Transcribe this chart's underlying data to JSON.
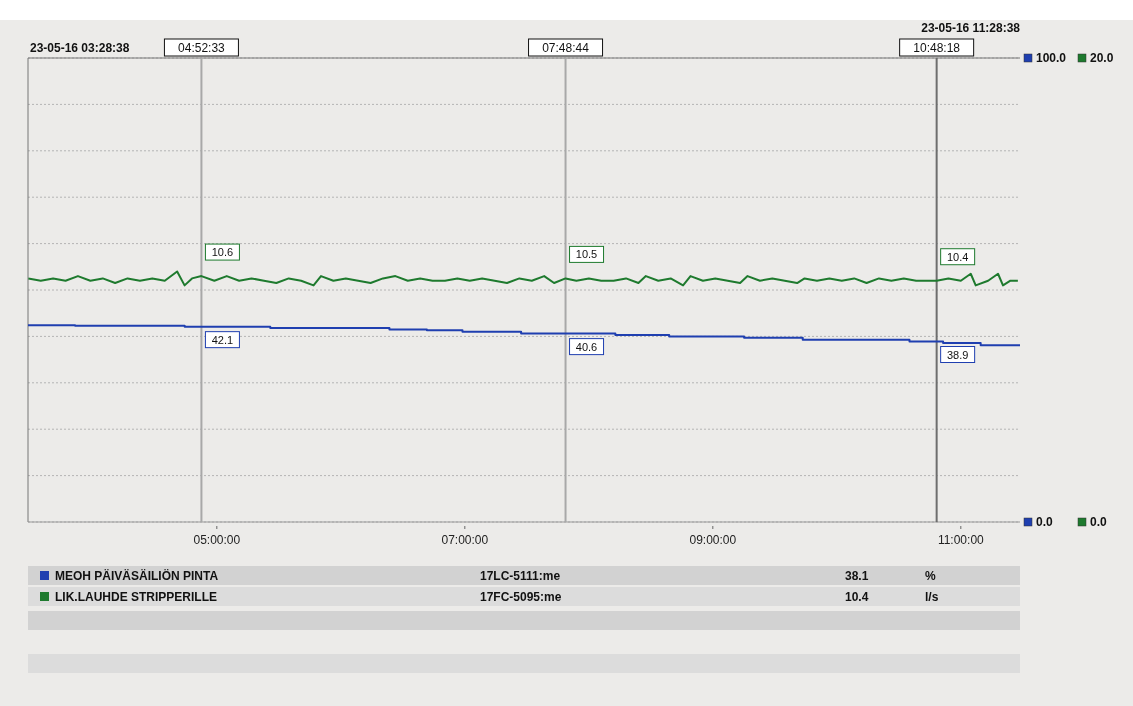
{
  "chart_data": {
    "type": "line",
    "xlim": [
      3.47722,
      11.47722
    ],
    "xticks": [
      {
        "value": 5,
        "label": "05:00:00"
      },
      {
        "value": 7,
        "label": "07:00:00"
      },
      {
        "value": 9,
        "label": "09:00:00"
      },
      {
        "value": 11,
        "label": "11:00:00"
      }
    ],
    "ylim": [
      0,
      100
    ],
    "yticks": [
      {
        "value": 0,
        "label": "0.0"
      },
      {
        "value": 10,
        "label": null
      },
      {
        "value": 20,
        "label": null
      },
      {
        "value": 30,
        "label": null
      },
      {
        "value": 40,
        "label": null
      },
      {
        "value": 50,
        "label": null
      },
      {
        "value": 60,
        "label": null
      },
      {
        "value": 70,
        "label": null
      },
      {
        "value": 80,
        "label": null
      },
      {
        "value": 90,
        "label": null
      },
      {
        "value": 100,
        "label": "100.0"
      }
    ],
    "y2lim": [
      0,
      20
    ],
    "y2ticks": [
      {
        "value": 0,
        "label": "0.0"
      },
      {
        "value": 20,
        "label": "20.0"
      }
    ],
    "grid": "y",
    "legend": "bottom",
    "series": [
      {
        "name": "MEOH PÄIVÄSÄILIÖN PINTA",
        "type": "step",
        "color": "#1f3fb0",
        "x": [
          3.47722,
          3.857,
          4.741,
          4.87583,
          5.431,
          6.392,
          6.694,
          6.981,
          7.454,
          7.81222,
          8.214,
          8.648,
          9.252,
          9.725,
          10.586,
          10.805,
          10.857,
          11.16,
          11.47722
        ],
        "values": [
          42.4,
          42.3,
          42.1,
          42.1,
          41.8,
          41.5,
          41.3,
          41.0,
          40.6,
          40.6,
          40.3,
          40.0,
          39.7,
          39.3,
          38.9,
          38.9,
          38.6,
          38.1,
          38.1
        ],
        "value_labels": [
          null,
          null,
          null,
          "42.1",
          null,
          null,
          null,
          null,
          null,
          "40.6",
          null,
          null,
          null,
          null,
          null,
          "38.9",
          null,
          null,
          null
        ]
      },
      {
        "name": "LIK.LAUHDE STRIPPERILLE",
        "type": "line",
        "axis": "y2",
        "color": "#1e7a2e",
        "x": [
          3.48,
          3.58,
          3.68,
          3.78,
          3.88,
          3.98,
          4.08,
          4.18,
          4.28,
          4.38,
          4.48,
          4.58,
          4.68,
          4.74,
          4.8,
          4.87583,
          4.98,
          5.08,
          5.18,
          5.28,
          5.38,
          5.48,
          5.58,
          5.68,
          5.78,
          5.84,
          5.94,
          6.04,
          6.14,
          6.24,
          6.34,
          6.44,
          6.54,
          6.64,
          6.74,
          6.84,
          6.94,
          7.04,
          7.14,
          7.24,
          7.34,
          7.44,
          7.54,
          7.64,
          7.72,
          7.81222,
          7.9,
          8.0,
          8.1,
          8.2,
          8.3,
          8.4,
          8.46,
          8.56,
          8.66,
          8.76,
          8.82,
          8.92,
          9.02,
          9.12,
          9.22,
          9.28,
          9.38,
          9.48,
          9.58,
          9.68,
          9.74,
          9.84,
          9.94,
          10.04,
          10.14,
          10.24,
          10.34,
          10.44,
          10.54,
          10.64,
          10.74,
          10.805,
          10.9,
          11.0,
          11.08,
          11.12,
          11.22,
          11.3,
          11.34,
          11.4,
          11.46
        ],
        "values": [
          10.5,
          10.4,
          10.5,
          10.4,
          10.6,
          10.4,
          10.5,
          10.3,
          10.5,
          10.4,
          10.5,
          10.4,
          10.8,
          10.2,
          10.5,
          10.6,
          10.4,
          10.6,
          10.4,
          10.5,
          10.4,
          10.3,
          10.5,
          10.4,
          10.2,
          10.6,
          10.4,
          10.5,
          10.4,
          10.3,
          10.5,
          10.6,
          10.4,
          10.5,
          10.4,
          10.4,
          10.5,
          10.4,
          10.5,
          10.4,
          10.3,
          10.5,
          10.4,
          10.6,
          10.3,
          10.5,
          10.4,
          10.5,
          10.4,
          10.4,
          10.5,
          10.3,
          10.6,
          10.4,
          10.5,
          10.2,
          10.6,
          10.4,
          10.5,
          10.4,
          10.3,
          10.6,
          10.4,
          10.5,
          10.4,
          10.3,
          10.5,
          10.4,
          10.5,
          10.4,
          10.5,
          10.3,
          10.5,
          10.4,
          10.5,
          10.4,
          10.4,
          10.4,
          10.5,
          10.4,
          10.7,
          10.2,
          10.4,
          10.7,
          10.2,
          10.4,
          10.4
        ],
        "value_labels": [
          null,
          null,
          null,
          null,
          null,
          null,
          null,
          null,
          null,
          null,
          null,
          null,
          null,
          null,
          null,
          "10.6",
          null,
          null,
          null,
          null,
          null,
          null,
          null,
          null,
          null,
          null,
          null,
          null,
          null,
          null,
          null,
          null,
          null,
          null,
          null,
          null,
          null,
          null,
          null,
          null,
          null,
          null,
          null,
          null,
          null,
          "10.5",
          null,
          null,
          null,
          null,
          null,
          null,
          null,
          null,
          null,
          null,
          null,
          null,
          null,
          null,
          null,
          null,
          null,
          null,
          null,
          null,
          null,
          null,
          null,
          null,
          null,
          null,
          null,
          null,
          null,
          null,
          null,
          "10.4",
          null,
          null,
          null,
          null,
          null,
          null,
          null,
          null,
          null
        ]
      }
    ],
    "ref_lines": [
      {
        "axis": "x",
        "value": 4.87583,
        "color": "#a8a8a8"
      },
      {
        "axis": "x",
        "value": 7.81222,
        "color": "#a8a8a8"
      },
      {
        "axis": "x",
        "value": 10.805,
        "color": "#6e6e6e"
      }
    ],
    "annotations": [
      "23-05-16 03:28:38",
      "23-05-16 11:28:38",
      "17LC-5111:me",
      "38.1",
      "%",
      "17FC-5095:me",
      "10.4",
      "l/s",
      {
        "text": "04:52:33",
        "x": 4.87583,
        "y": 100
      },
      {
        "text": "07:48:44",
        "x": 7.81222,
        "y": 100
      },
      {
        "text": "10:48:18",
        "x": 10.805,
        "y": 100
      }
    ]
  }
}
